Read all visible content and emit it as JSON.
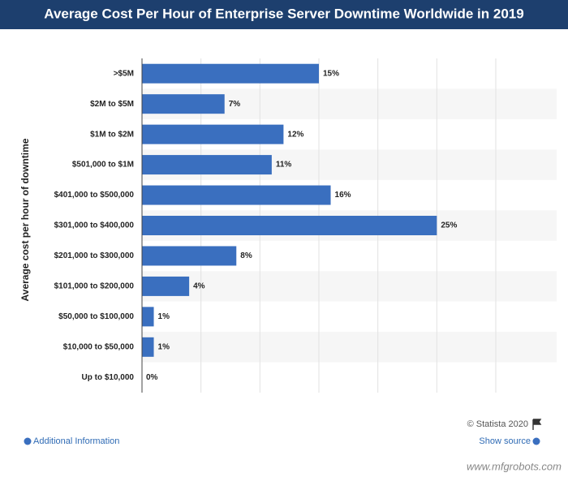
{
  "chart_data": {
    "type": "bar",
    "orientation": "horizontal",
    "title": "Average Cost Per Hour of Enterprise Server Downtime Worldwide in 2019",
    "y_label": "Average cost per hour of downtime",
    "categories": [
      ">$5M",
      "$2M to $5M",
      "$1M to $2M",
      "$501,000 to $1M",
      "$401,000 to $500,000",
      "$301,000 to $400,000",
      "$201,000 to $300,000",
      "$101,000 to $200,000",
      "$50,000 to $100,000",
      "$10,000 to $50,000",
      "Up to $10,000"
    ],
    "values": [
      15,
      7,
      12,
      11,
      16,
      25,
      8,
      4,
      1,
      1,
      0
    ],
    "value_labels": [
      "15%",
      "7%",
      "12%",
      "11%",
      "16%",
      "25%",
      "8%",
      "4%",
      "1%",
      "1%",
      "0%"
    ],
    "color": "#3a6fbf",
    "xlim": [
      0,
      30
    ],
    "xticks": [
      0,
      5,
      10,
      15,
      20,
      25,
      30
    ],
    "grid": true,
    "copyright": "© Statista 2020",
    "additional_info": "Additional Information",
    "show_source": "Show source",
    "watermark": "www.mfgrobots.com"
  }
}
